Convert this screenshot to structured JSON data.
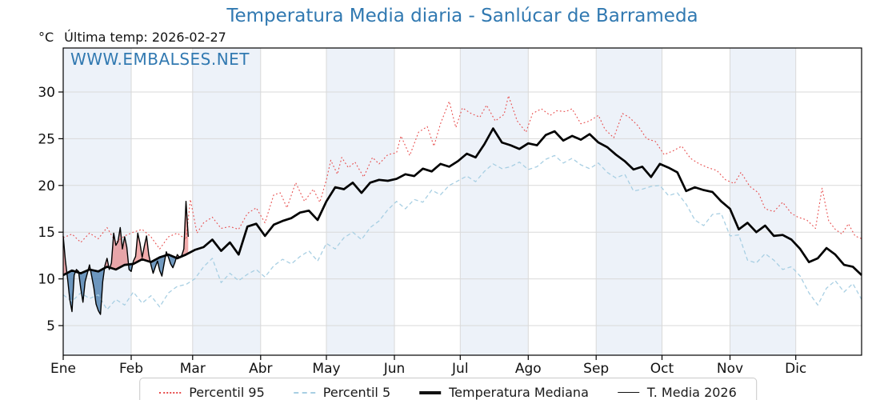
{
  "title": "Temperatura Media diaria - Sanlúcar de Barrameda",
  "subtitle": {
    "units": "°C",
    "last_temp": "Última temp: 2026-02-27"
  },
  "watermark": "WWW.EMBALSES.NET",
  "colors": {
    "accent_blue": "#3179b1",
    "band": "#edf2f9",
    "grid": "#d9d9d9",
    "spine": "#000000",
    "fill_above": "rgba(225,70,70,0.45)",
    "fill_below": "rgba(38,100,158,0.65)"
  },
  "chart_data": {
    "type": "line",
    "title": "Temperatura Media diaria - Sanlúcar de Barrameda",
    "xlabel": "",
    "ylabel": "°C",
    "x_unit": "day_of_year",
    "ylim": [
      1.8,
      34.7
    ],
    "yticks": [
      5,
      10,
      15,
      20,
      25,
      30
    ],
    "grid": true,
    "legend_position": "bottom",
    "month_labels": [
      "Ene",
      "Feb",
      "Mar",
      "Abr",
      "May",
      "Jun",
      "Jul",
      "Ago",
      "Sep",
      "Oct",
      "Nov",
      "Dic"
    ],
    "month_start_days": [
      1,
      32,
      60,
      91,
      121,
      152,
      182,
      213,
      244,
      274,
      305,
      335
    ],
    "shaded_months": [
      0,
      2,
      4,
      6,
      8,
      10
    ],
    "series": [
      {
        "name": "Percentil 95",
        "style": "dotted",
        "color": "#e74c4c",
        "width": 1.1,
        "days": [
          1,
          5,
          9,
          13,
          17,
          21,
          25,
          29,
          33,
          37,
          41,
          45,
          49,
          53,
          57,
          59,
          62,
          65,
          69,
          73,
          77,
          81,
          85,
          89,
          93,
          97,
          100,
          103,
          107,
          111,
          115,
          118,
          121,
          123,
          126,
          128,
          131,
          134,
          138,
          142,
          145,
          149,
          153,
          155,
          159,
          163,
          167,
          170,
          173,
          177,
          180,
          183,
          187,
          191,
          194,
          198,
          202,
          204,
          208,
          212,
          215,
          219,
          223,
          226,
          230,
          233,
          237,
          241,
          245,
          248,
          252,
          256,
          259,
          263,
          267,
          271,
          275,
          279,
          283,
          287,
          291,
          295,
          299,
          303,
          307,
          310,
          314,
          318,
          321,
          325,
          329,
          333,
          336,
          340,
          344,
          347,
          350,
          353,
          356,
          359,
          362,
          365
        ],
        "values": [
          14.4,
          14.8,
          13.9,
          14.9,
          14.3,
          15.5,
          13.9,
          14.6,
          15.0,
          15.3,
          14.5,
          13.2,
          14.5,
          14.9,
          14.2,
          18.5,
          14.9,
          16.0,
          16.6,
          15.4,
          15.6,
          15.3,
          17.0,
          17.6,
          16.0,
          19.0,
          19.2,
          17.6,
          20.3,
          18.3,
          19.6,
          18.2,
          20.6,
          22.7,
          21.2,
          23.0,
          21.9,
          22.5,
          20.9,
          23.0,
          22.3,
          23.3,
          23.5,
          25.3,
          23.2,
          25.7,
          26.3,
          24.2,
          26.6,
          29.0,
          26.2,
          28.3,
          27.7,
          27.3,
          28.6,
          26.9,
          27.6,
          29.6,
          26.9,
          25.7,
          27.7,
          28.2,
          27.5,
          28.0,
          27.9,
          28.2,
          26.6,
          26.9,
          27.5,
          26.0,
          25.1,
          27.7,
          27.3,
          26.4,
          25.0,
          24.7,
          23.3,
          23.7,
          24.2,
          22.9,
          22.3,
          21.9,
          21.6,
          20.6,
          20.2,
          21.4,
          19.9,
          19.2,
          17.5,
          17.2,
          18.2,
          17.0,
          16.6,
          16.3,
          15.4,
          19.7,
          16.2,
          15.3,
          14.8,
          15.9,
          14.6,
          14.3
        ]
      },
      {
        "name": "Percentil 5",
        "style": "dashed",
        "color": "#a8cfe3",
        "width": 1.3,
        "days": [
          1,
          5,
          9,
          13,
          17,
          21,
          25,
          29,
          33,
          37,
          41,
          45,
          49,
          53,
          57,
          61,
          65,
          69,
          73,
          77,
          81,
          85,
          89,
          93,
          97,
          101,
          105,
          109,
          113,
          117,
          121,
          125,
          129,
          133,
          137,
          141,
          145,
          149,
          153,
          157,
          161,
          165,
          169,
          173,
          177,
          181,
          185,
          189,
          193,
          197,
          201,
          205,
          209,
          213,
          217,
          221,
          225,
          229,
          233,
          237,
          241,
          245,
          249,
          253,
          257,
          261,
          265,
          269,
          273,
          277,
          281,
          285,
          289,
          293,
          297,
          301,
          305,
          309,
          313,
          317,
          321,
          325,
          329,
          333,
          337,
          341,
          345,
          349,
          353,
          357,
          361,
          365
        ],
        "values": [
          8.3,
          7.6,
          8.5,
          7.9,
          8.3,
          6.7,
          7.8,
          7.2,
          8.6,
          7.4,
          8.2,
          7.0,
          8.5,
          9.2,
          9.4,
          10.0,
          11.3,
          12.2,
          9.6,
          10.6,
          9.8,
          10.5,
          11.0,
          10.2,
          11.4,
          12.1,
          11.6,
          12.4,
          13.0,
          11.9,
          13.8,
          13.2,
          14.4,
          15.0,
          14.2,
          15.5,
          16.2,
          17.4,
          18.3,
          17.5,
          18.5,
          18.2,
          19.5,
          19.0,
          20.0,
          20.5,
          21.0,
          20.4,
          21.5,
          22.3,
          21.8,
          22.0,
          22.5,
          21.7,
          22.0,
          22.8,
          23.2,
          22.4,
          22.9,
          22.2,
          21.8,
          22.4,
          21.4,
          20.8,
          21.2,
          19.4,
          19.6,
          19.9,
          20.0,
          18.9,
          19.2,
          18.0,
          16.3,
          15.7,
          16.9,
          17.0,
          14.6,
          14.7,
          12.0,
          11.7,
          12.7,
          12.0,
          11.0,
          11.3,
          10.3,
          8.5,
          7.2,
          9.0,
          9.8,
          8.6,
          9.5,
          7.8
        ]
      },
      {
        "name": "Temperatura Mediana",
        "style": "solid",
        "color": "#000000",
        "width": 2.7,
        "days": [
          1,
          5,
          9,
          13,
          17,
          21,
          25,
          29,
          33,
          37,
          41,
          45,
          49,
          53,
          57,
          61,
          65,
          69,
          73,
          77,
          81,
          85,
          89,
          93,
          97,
          101,
          105,
          109,
          113,
          117,
          121,
          125,
          129,
          133,
          137,
          141,
          145,
          149,
          153,
          157,
          161,
          165,
          169,
          173,
          177,
          181,
          185,
          189,
          193,
          197,
          201,
          205,
          209,
          213,
          217,
          221,
          225,
          229,
          233,
          237,
          241,
          245,
          249,
          253,
          257,
          261,
          265,
          269,
          273,
          277,
          281,
          285,
          289,
          293,
          297,
          301,
          305,
          309,
          313,
          317,
          321,
          325,
          329,
          333,
          337,
          341,
          345,
          349,
          353,
          357,
          361,
          365
        ],
        "values": [
          10.4,
          10.9,
          10.6,
          11.0,
          10.8,
          11.3,
          11.0,
          11.5,
          11.6,
          12.1,
          11.8,
          12.3,
          12.6,
          12.2,
          12.6,
          13.1,
          13.4,
          14.2,
          13.0,
          13.9,
          12.6,
          15.6,
          15.9,
          14.6,
          15.8,
          16.2,
          16.5,
          17.1,
          17.3,
          16.3,
          18.3,
          19.8,
          19.6,
          20.3,
          19.2,
          20.3,
          20.6,
          20.5,
          20.7,
          21.2,
          21.0,
          21.8,
          21.5,
          22.3,
          22.0,
          22.6,
          23.4,
          23.0,
          24.4,
          26.1,
          24.6,
          24.3,
          23.9,
          24.5,
          24.3,
          25.4,
          25.8,
          24.8,
          25.3,
          24.9,
          25.5,
          24.6,
          24.1,
          23.3,
          22.6,
          21.7,
          22.0,
          20.9,
          22.3,
          21.9,
          21.4,
          19.4,
          19.8,
          19.5,
          19.3,
          18.3,
          17.5,
          15.3,
          16.0,
          15.0,
          15.7,
          14.6,
          14.7,
          14.2,
          13.2,
          11.8,
          12.2,
          13.3,
          12.6,
          11.5,
          11.3,
          10.4
        ]
      },
      {
        "name": "T. Media 2026",
        "style": "solid",
        "color": "#000000",
        "width": 1.4,
        "fill_vs": "Temperatura Mediana",
        "fill_above": "rgba(225,70,70,0.45)",
        "fill_below": "rgba(38,100,158,0.65)",
        "days": [
          1,
          2,
          3,
          4,
          5,
          6,
          7,
          8,
          9,
          10,
          11,
          12,
          13,
          14,
          15,
          16,
          17,
          18,
          19,
          20,
          21,
          22,
          23,
          24,
          25,
          26,
          27,
          28,
          29,
          30,
          31,
          32,
          33,
          34,
          35,
          36,
          37,
          38,
          39,
          40,
          41,
          42,
          43,
          44,
          45,
          46,
          47,
          48,
          49,
          50,
          51,
          52,
          53,
          54,
          55,
          56,
          57,
          58
        ],
        "values": [
          14.6,
          12.0,
          10.0,
          7.8,
          6.5,
          10.4,
          11.0,
          10.8,
          9.0,
          7.5,
          9.7,
          10.6,
          11.5,
          10.3,
          9.0,
          7.3,
          6.6,
          6.2,
          9.7,
          11.4,
          12.2,
          11.0,
          11.7,
          14.9,
          13.6,
          14.0,
          15.5,
          13.2,
          14.5,
          13.4,
          11.0,
          10.8,
          11.9,
          12.4,
          14.9,
          13.8,
          12.3,
          13.5,
          14.6,
          12.6,
          11.5,
          10.6,
          11.3,
          11.9,
          10.9,
          10.3,
          11.6,
          12.9,
          12.3,
          11.6,
          11.2,
          11.8,
          12.6,
          12.3,
          12.5,
          13.2,
          18.3,
          14.5
        ]
      }
    ],
    "legend": [
      "Percentil 95",
      "Percentil 5",
      "Temperatura Mediana",
      "T. Media 2026"
    ]
  }
}
